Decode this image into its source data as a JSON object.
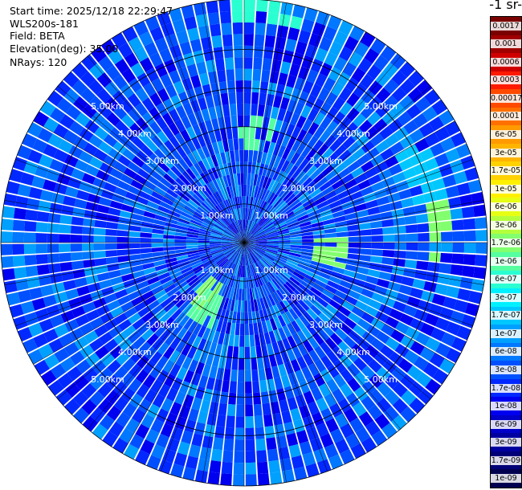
{
  "header": {
    "start_time": "Start time: 2025/12/18 22:29:47",
    "instrument": "WLS200s-181",
    "field": "Field: BETA",
    "elevation": "Elevation(deg): 35.00",
    "nrays": "NRays: 120"
  },
  "colorbar": {
    "title": "-1 sr-",
    "levels": [
      "0.0017",
      "0.001",
      "0.0006",
      "0.0003",
      "0.00017",
      "0.0001",
      "6e-05",
      "3e-05",
      "1.7e-05",
      "1e-05",
      "6e-06",
      "3e-06",
      "1.7e-06",
      "1e-06",
      "6e-07",
      "3e-07",
      "1.7e-07",
      "1e-07",
      "6e-08",
      "3e-08",
      "1.7e-08",
      "1e-08",
      "6e-09",
      "3e-09",
      "1.7e-09",
      "1e-09"
    ],
    "colors": [
      "#7a0000",
      "#a00000",
      "#d00000",
      "#ff1a00",
      "#ff4a00",
      "#ff7000",
      "#ff9a00",
      "#ffb400",
      "#ffd200",
      "#fff000",
      "#e6ff14",
      "#b4ff3c",
      "#82ff6e",
      "#55ffa0",
      "#2affd2",
      "#00f0ff",
      "#00c8ff",
      "#00a0ff",
      "#0078ff",
      "#0050ff",
      "#0028ff",
      "#0000f0",
      "#0000c8",
      "#0000a0",
      "#000078",
      "#000050"
    ]
  },
  "chart_data": {
    "type": "heatmap",
    "projection": "polar (PPI)",
    "field": "BETA",
    "elevation_deg": 35.0,
    "n_rays": 120,
    "range_ring_labels": [
      "1.00km",
      "2.00km",
      "3.00km",
      "4.00km",
      "5.00km"
    ],
    "range_rings_km": [
      1,
      2,
      3,
      4,
      5
    ],
    "max_range_km": 6.3,
    "background_level": "3e-08",
    "notable_returns": [
      {
        "azimuth_deg": 70,
        "range_km": 4.9,
        "level": "1.7e-07"
      },
      {
        "azimuth_deg": 88,
        "range_km": 5.1,
        "level": "1.7e-06"
      },
      {
        "azimuth_deg": 95,
        "range_km": 2.2,
        "level": "1.7e-06"
      },
      {
        "azimuth_deg": 5,
        "range_km": 2.8,
        "level": "1e-06"
      },
      {
        "azimuth_deg": 215,
        "range_km": 1.6,
        "level": "1.7e-06"
      },
      {
        "azimuth_deg": 210,
        "range_km": 2.0,
        "level": "1e-06"
      },
      {
        "azimuth_deg": 5,
        "range_km": 6.0,
        "level": "6e-07"
      }
    ]
  }
}
